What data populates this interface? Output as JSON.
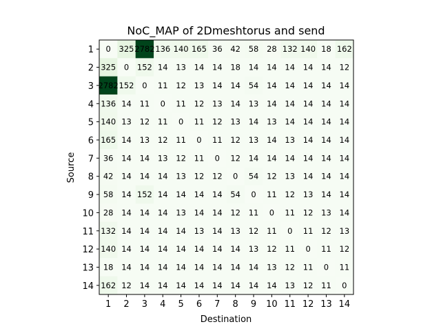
{
  "chart_data": {
    "type": "heatmap",
    "title": "NoC_MAP of 2Dmeshtorus and send",
    "xlabel": "Destination",
    "ylabel": "Source",
    "x_categories": [
      "1",
      "2",
      "3",
      "4",
      "5",
      "6",
      "7",
      "8",
      "9",
      "10",
      "11",
      "12",
      "13",
      "14"
    ],
    "y_categories": [
      "1",
      "2",
      "3",
      "4",
      "5",
      "6",
      "7",
      "8",
      "9",
      "10",
      "11",
      "12",
      "13",
      "14"
    ],
    "colormap": "Greens",
    "vmin": 0,
    "vmax": 2700,
    "matrix": [
      [
        0,
        325,
        2782,
        136,
        140,
        165,
        36,
        42,
        58,
        28,
        132,
        140,
        18,
        162
      ],
      [
        325,
        0,
        152,
        14,
        13,
        14,
        14,
        18,
        14,
        14,
        14,
        14,
        14,
        12
      ],
      [
        2782,
        152,
        0,
        11,
        12,
        13,
        14,
        14,
        54,
        14,
        14,
        14,
        14,
        14
      ],
      [
        136,
        14,
        11,
        0,
        11,
        12,
        13,
        14,
        13,
        14,
        14,
        14,
        14,
        14
      ],
      [
        140,
        13,
        12,
        11,
        0,
        11,
        12,
        13,
        14,
        13,
        14,
        14,
        14,
        14
      ],
      [
        165,
        14,
        13,
        12,
        11,
        0,
        11,
        12,
        13,
        14,
        13,
        14,
        14,
        14
      ],
      [
        36,
        14,
        14,
        13,
        12,
        11,
        0,
        12,
        14,
        14,
        14,
        14,
        14,
        14
      ],
      [
        42,
        14,
        14,
        14,
        13,
        12,
        12,
        0,
        54,
        12,
        13,
        14,
        14,
        14
      ],
      [
        58,
        14,
        152,
        14,
        14,
        14,
        14,
        54,
        0,
        11,
        12,
        13,
        14,
        14
      ],
      [
        28,
        14,
        14,
        14,
        13,
        14,
        14,
        12,
        11,
        0,
        11,
        12,
        13,
        14
      ],
      [
        132,
        14,
        14,
        14,
        14,
        13,
        14,
        13,
        12,
        11,
        0,
        11,
        12,
        13
      ],
      [
        140,
        14,
        14,
        14,
        14,
        14,
        14,
        14,
        13,
        12,
        11,
        0,
        11,
        12
      ],
      [
        18,
        14,
        14,
        14,
        14,
        14,
        14,
        14,
        14,
        13,
        12,
        11,
        0,
        11
      ],
      [
        162,
        12,
        14,
        14,
        14,
        14,
        14,
        14,
        14,
        14,
        13,
        12,
        11,
        0
      ]
    ]
  }
}
